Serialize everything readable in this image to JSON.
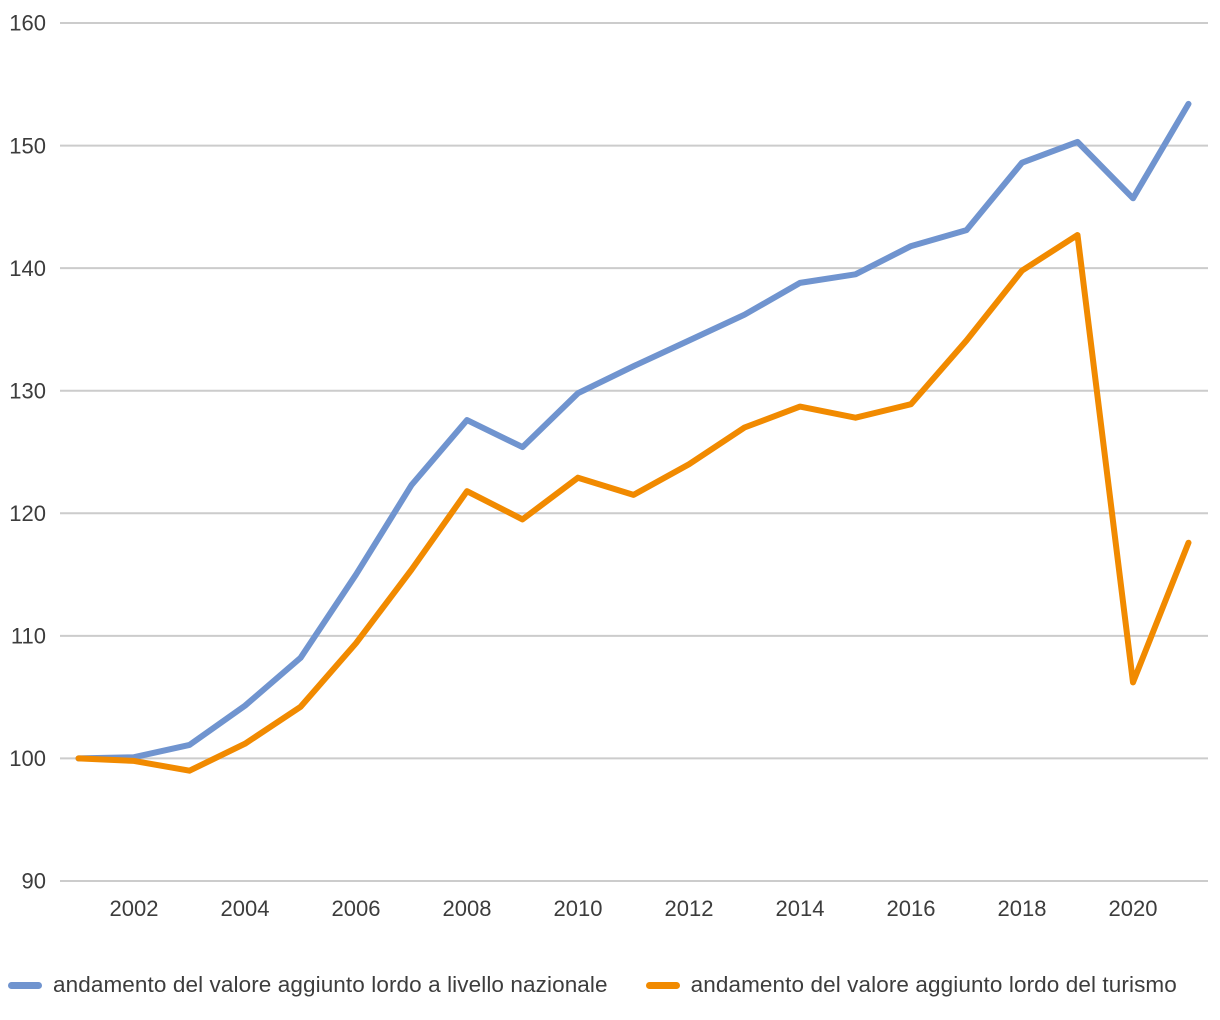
{
  "chart_data": {
    "type": "line",
    "title": "",
    "xlabel": "",
    "ylabel": "",
    "x": [
      2001,
      2002,
      2003,
      2004,
      2005,
      2006,
      2007,
      2008,
      2009,
      2010,
      2011,
      2012,
      2013,
      2014,
      2015,
      2016,
      2017,
      2018,
      2019,
      2020,
      2021
    ],
    "x_tick_labels": [
      "2002",
      "2004",
      "2006",
      "2008",
      "2010",
      "2012",
      "2014",
      "2016",
      "2018",
      "2020"
    ],
    "x_ticks": [
      2002,
      2004,
      2006,
      2008,
      2010,
      2012,
      2014,
      2016,
      2018,
      2020
    ],
    "y_ticks": [
      90,
      100,
      110,
      120,
      130,
      140,
      150,
      160
    ],
    "y_tick_labels": [
      "90",
      "100",
      "110",
      "120",
      "130",
      "140",
      "150",
      "160"
    ],
    "ylim": [
      90,
      160
    ],
    "xlim": [
      2001,
      2021
    ],
    "grid": "horizontal-only",
    "legend_position": "bottom-left",
    "series": [
      {
        "name": "andamento del valore aggiunto lordo a livello nazionale",
        "color": "#7094cf",
        "values": [
          100,
          100.1,
          101.1,
          104.3,
          108.2,
          115.0,
          122.3,
          127.6,
          125.4,
          129.8,
          132.0,
          134.1,
          136.2,
          138.8,
          139.5,
          141.8,
          143.1,
          148.6,
          150.3,
          145.7,
          153.4
        ]
      },
      {
        "name": "andamento del valore aggiunto lordo del turismo",
        "color": "#f18a00",
        "values": [
          100,
          99.8,
          99.0,
          101.2,
          104.2,
          109.4,
          115.4,
          121.8,
          119.5,
          122.9,
          121.5,
          124.0,
          127.0,
          128.7,
          127.8,
          128.9,
          134.1,
          139.8,
          142.7,
          106.2,
          117.6
        ]
      }
    ],
    "style": {
      "grid_color": "#cccccc",
      "tick_label_color": "#3c3c3c",
      "line_width": 6
    }
  }
}
